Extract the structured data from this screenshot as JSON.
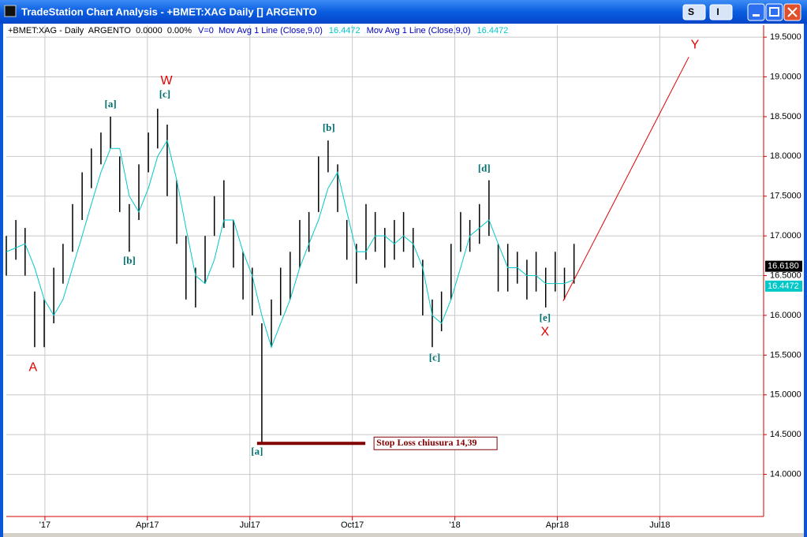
{
  "window": {
    "title": "TradeStation Chart Analysis - +BMET:XAG Daily [] ARGENTO",
    "buttons": [
      "S",
      "I"
    ]
  },
  "chart_data": {
    "type": "ohlc",
    "header": [
      {
        "text": "+BMET:XAG - Daily  ARGENTO  0.0000  0.00%",
        "color": "#000000"
      },
      {
        "text": "V=0  Mov Avg 1 Line (Close,9,0)",
        "color": "#0000c0"
      },
      {
        "text": "16.4472",
        "color": "#00c8c8"
      },
      {
        "text": "Mov Avg 1 Line (Close,9,0)",
        "color": "#0000c0"
      },
      {
        "text": "16.4472",
        "color": "#00c8c8"
      }
    ],
    "x": [
      -1.13,
      -0.85,
      -0.58,
      -0.3,
      -0.02,
      0.26,
      0.53,
      0.81,
      1.09,
      1.36,
      1.64,
      1.92,
      2.19,
      2.47,
      2.75,
      3.03,
      3.3,
      3.58,
      3.86,
      4.13,
      4.41,
      4.69,
      4.96,
      5.24,
      5.52,
      5.8,
      6.07,
      6.35,
      6.63,
      6.9,
      7.18,
      7.46,
      7.73,
      8.01,
      8.29,
      8.57,
      8.84,
      9.12,
      9.4,
      9.67,
      9.95,
      10.23,
      10.5,
      10.78,
      11.06,
      11.34,
      11.61,
      11.89,
      12.17,
      12.44,
      12.72,
      13.0,
      13.27,
      13.55,
      13.83,
      14.11,
      14.38,
      14.66,
      14.94,
      15.21,
      15.49
    ],
    "high": [
      17.0,
      17.2,
      17.1,
      16.3,
      16.2,
      16.6,
      16.9,
      17.4,
      17.8,
      18.1,
      18.3,
      18.5,
      18.0,
      17.4,
      17.9,
      18.3,
      18.6,
      18.4,
      17.7,
      17.0,
      16.6,
      17.0,
      17.5,
      17.7,
      17.2,
      16.8,
      16.6,
      15.9,
      16.2,
      16.6,
      16.8,
      17.2,
      17.3,
      18.0,
      18.2,
      17.9,
      17.2,
      16.9,
      17.4,
      17.3,
      17.1,
      17.2,
      17.3,
      17.1,
      16.7,
      16.2,
      16.3,
      16.9,
      17.3,
      17.2,
      17.4,
      17.7,
      16.9,
      16.9,
      16.8,
      16.7,
      16.8,
      16.6,
      16.8,
      16.6,
      16.9
    ],
    "low": [
      16.5,
      16.7,
      16.5,
      15.6,
      15.6,
      15.9,
      16.4,
      16.8,
      17.2,
      17.6,
      17.9,
      18.1,
      17.3,
      16.8,
      17.2,
      17.8,
      18.1,
      17.5,
      16.9,
      16.2,
      16.1,
      16.4,
      17.0,
      17.1,
      16.6,
      16.2,
      16.0,
      14.39,
      15.6,
      16.0,
      16.2,
      16.6,
      16.8,
      17.3,
      17.8,
      17.3,
      16.7,
      16.4,
      16.7,
      16.8,
      16.6,
      16.7,
      16.8,
      16.6,
      16.0,
      15.6,
      15.8,
      16.2,
      16.8,
      16.8,
      16.9,
      17.0,
      16.3,
      16.3,
      16.4,
      16.2,
      16.3,
      16.1,
      16.3,
      16.2,
      16.4
    ],
    "ma": {
      "color": "#00c8c8",
      "values": [
        16.8,
        16.85,
        16.9,
        16.6,
        16.2,
        16.0,
        16.2,
        16.6,
        17.0,
        17.4,
        17.8,
        18.1,
        18.1,
        17.5,
        17.3,
        17.6,
        18.0,
        18.2,
        17.7,
        17.1,
        16.5,
        16.4,
        16.7,
        17.2,
        17.2,
        16.8,
        16.5,
        16.0,
        15.6,
        15.9,
        16.2,
        16.6,
        16.9,
        17.2,
        17.6,
        17.8,
        17.3,
        16.8,
        16.8,
        17.0,
        17.0,
        16.9,
        17.0,
        16.9,
        16.6,
        16.0,
        15.9,
        16.2,
        16.6,
        17.0,
        17.1,
        17.2,
        16.9,
        16.6,
        16.6,
        16.5,
        16.5,
        16.4,
        16.4,
        16.4,
        16.45
      ]
    },
    "bar_color": "#000000",
    "xlim": [
      -1.13,
      21.04
    ],
    "ylim": [
      13.47,
      19.65
    ],
    "xticks": [
      {
        "value": 0,
        "label": "'17"
      },
      {
        "value": 3,
        "label": "Apr17"
      },
      {
        "value": 6,
        "label": "Jul17"
      },
      {
        "value": 9,
        "label": "Oct17"
      },
      {
        "value": 12,
        "label": "'18"
      },
      {
        "value": 15,
        "label": "Apr18"
      },
      {
        "value": 18,
        "label": "Jul18"
      }
    ],
    "yticks": [
      {
        "value": 14.0,
        "label": "14.0000"
      },
      {
        "value": 14.5,
        "label": "14.5000"
      },
      {
        "value": 15.0,
        "label": "15.0000"
      },
      {
        "value": 15.5,
        "label": "15.5000"
      },
      {
        "value": 16.0,
        "label": "16.0000"
      },
      {
        "value": 16.5,
        "label": "16.5000"
      },
      {
        "value": 17.0,
        "label": "17.0000"
      },
      {
        "value": 17.5,
        "label": "17.5000"
      },
      {
        "value": 18.0,
        "label": "18.0000"
      },
      {
        "value": 18.5,
        "label": "18.5000"
      },
      {
        "value": 19.0,
        "label": "19.0000"
      },
      {
        "value": 19.5,
        "label": "19.5000"
      }
    ],
    "grid": true,
    "last_price": {
      "value": 16.618,
      "label": "16.6180"
    },
    "ma_last": {
      "value": 16.4472,
      "label": "16.4472"
    },
    "annotations": [
      {
        "text": "A",
        "x": -0.35,
        "y": 15.34,
        "color": "#e00000"
      },
      {
        "text": "W",
        "x": 3.56,
        "y": 18.95,
        "color": "#e00000"
      },
      {
        "text": "[a]",
        "x": 1.92,
        "y": 18.65,
        "color": "#007070"
      },
      {
        "text": "[c]",
        "x": 3.51,
        "y": 18.77,
        "color": "#007070"
      },
      {
        "text": "[b]",
        "x": 2.47,
        "y": 16.68,
        "color": "#007070"
      },
      {
        "text": "[a]",
        "x": 6.21,
        "y": 14.28,
        "color": "#007070"
      },
      {
        "text": "[b]",
        "x": 8.31,
        "y": 18.35,
        "color": "#007070"
      },
      {
        "text": "[c]",
        "x": 11.41,
        "y": 15.46,
        "color": "#007070"
      },
      {
        "text": "[d]",
        "x": 12.86,
        "y": 17.84,
        "color": "#007070"
      },
      {
        "text": "[e]",
        "x": 14.64,
        "y": 15.96,
        "color": "#007070"
      },
      {
        "text": "X",
        "x": 14.64,
        "y": 15.79,
        "color": "#e00000"
      },
      {
        "text": "Y",
        "x": 19.03,
        "y": 19.4,
        "color": "#e00000"
      }
    ],
    "projection": {
      "x": [
        15.17,
        18.85
      ],
      "y": [
        16.18,
        19.25
      ],
      "color": "#e00000"
    },
    "stop_loss": {
      "x": [
        6.21,
        9.38
      ],
      "value": 14.39,
      "label": "Stop Loss chiusura 14,39",
      "color": "#800000"
    }
  }
}
